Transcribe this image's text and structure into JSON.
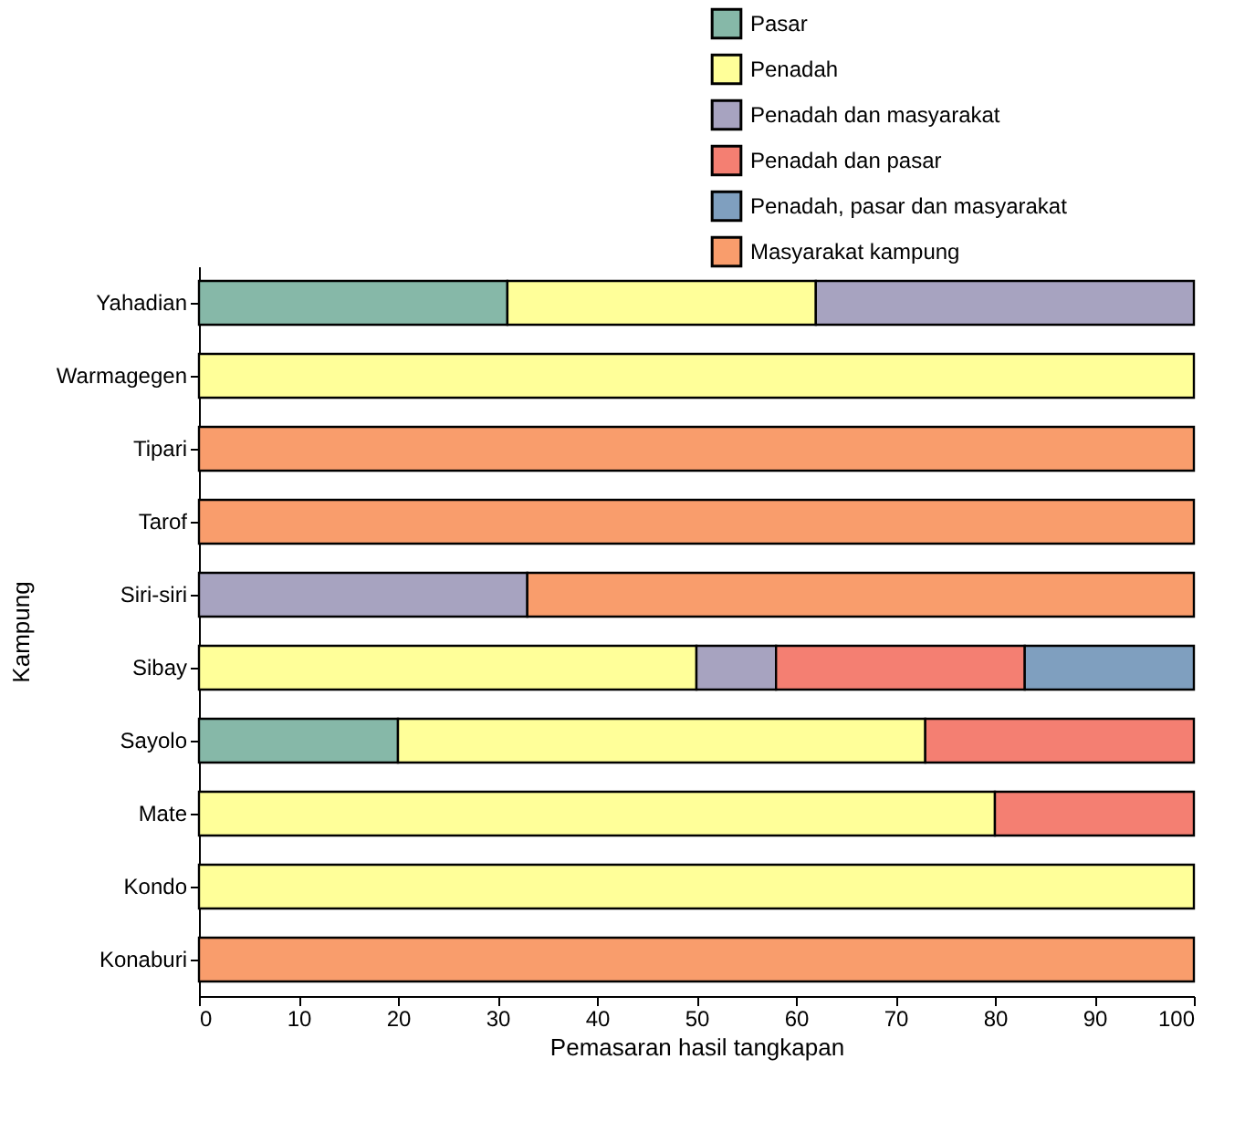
{
  "chart_data": {
    "type": "bar",
    "orientation": "horizontal",
    "stacked": true,
    "xlabel": "Pemasaran hasil tangkapan",
    "ylabel": "Kampung",
    "legend": "top right",
    "grid": false,
    "categories": [
      "Yahadian",
      "Warmagegen",
      "Tipari",
      "Tarof",
      "Siri-siri",
      "Sibay",
      "Sayolo",
      "Mate",
      "Kondo",
      "Konaburi"
    ],
    "xlim": [
      0,
      100
    ],
    "xticks": [
      0,
      10,
      20,
      30,
      40,
      50,
      60,
      70,
      80,
      90,
      100
    ],
    "series": [
      {
        "name": "Pasar",
        "color": "#86b8a8",
        "values": [
          31,
          null,
          null,
          null,
          null,
          null,
          20,
          null,
          null,
          null
        ]
      },
      {
        "name": "Penadah",
        "color": "#ffff99",
        "values": [
          31,
          100,
          null,
          null,
          null,
          50,
          53,
          80,
          100,
          null
        ]
      },
      {
        "name": "Penadah dan masyarakat",
        "color": "#a7a3c0",
        "values": [
          38,
          null,
          null,
          null,
          33,
          8,
          null,
          null,
          null,
          null
        ]
      },
      {
        "name": "Penadah dan pasar",
        "color": "#f47f72",
        "values": [
          null,
          null,
          null,
          null,
          null,
          25,
          27,
          20,
          null,
          null
        ]
      },
      {
        "name": "Penadah, pasar dan masyarakat",
        "color": "#7f9fbf",
        "values": [
          null,
          null,
          null,
          null,
          null,
          17,
          null,
          null,
          null,
          null
        ]
      },
      {
        "name": "Masyarakat kampung",
        "color": "#f99d6c",
        "values": [
          null,
          null,
          100,
          100,
          67,
          null,
          null,
          null,
          null,
          100
        ]
      }
    ]
  }
}
